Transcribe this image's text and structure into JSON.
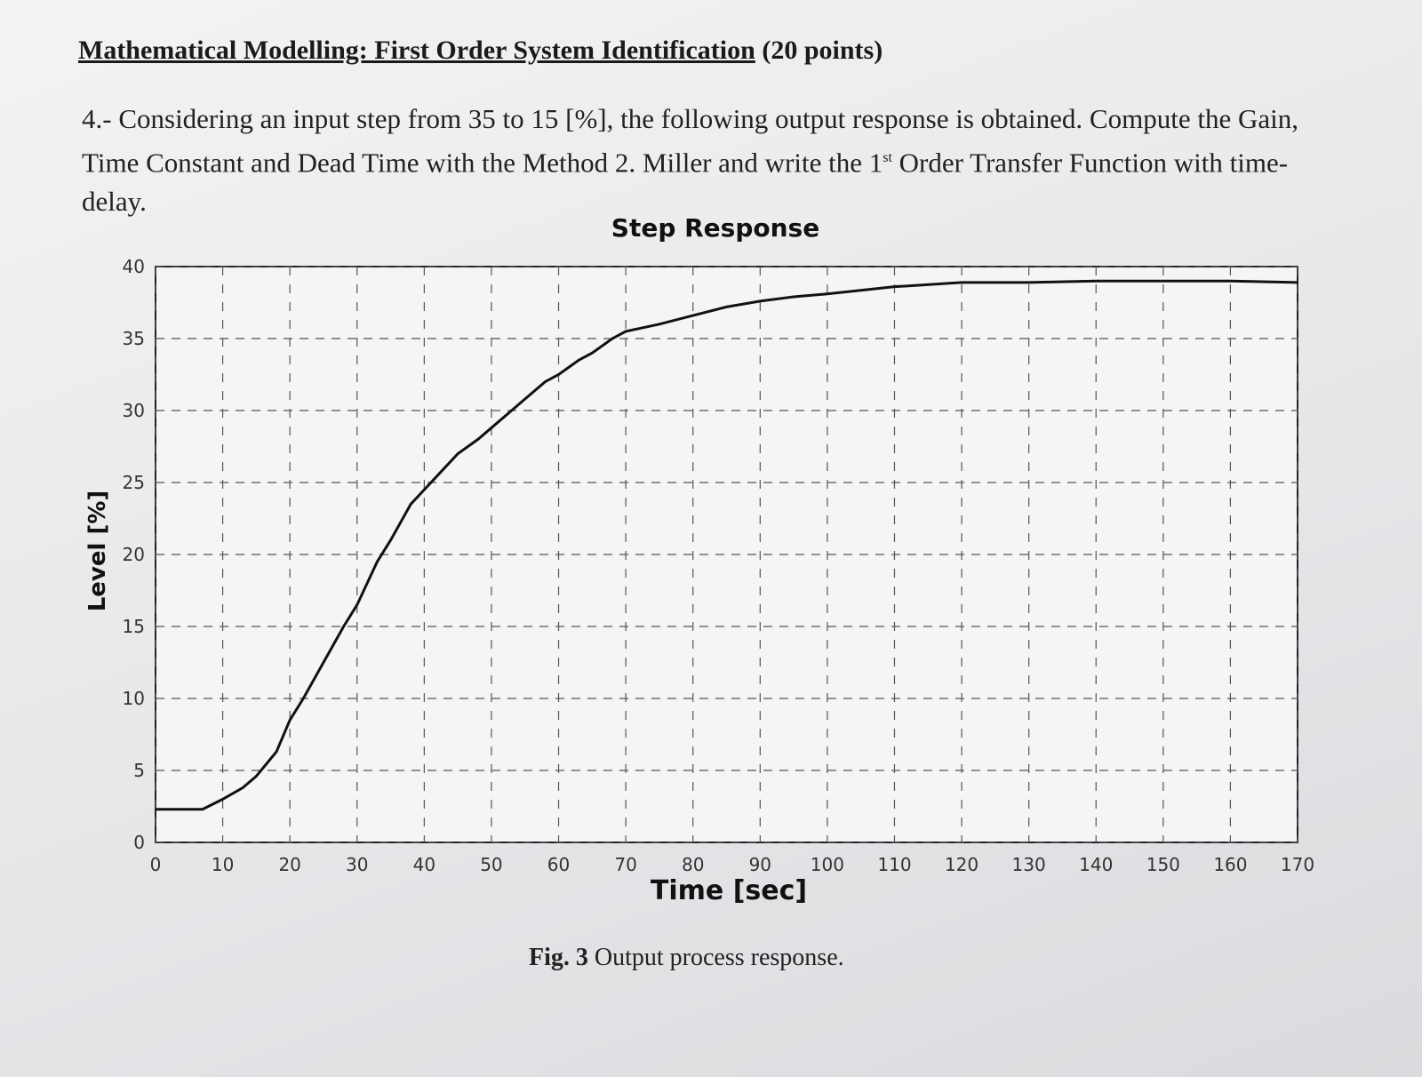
{
  "header": {
    "title": "Mathematical Modelling: First Order System Identification",
    "points": "(20 points)"
  },
  "question": {
    "before": "4.- Considering an input step from 35 to 15 [%], the following output response is obtained. Compute the Gain, Time Constant and Dead Time with the Method 2. Miller and write the 1",
    "superscript": "st",
    "after": "Order Transfer Function with time-delay."
  },
  "chart_data": {
    "type": "line",
    "title": "Step Response",
    "xlabel": "Time [sec]",
    "ylabel": "Level [%]",
    "color": "#111111",
    "grid": true,
    "x": [
      0,
      5,
      7,
      10,
      13,
      15,
      18,
      20,
      22,
      25,
      28,
      30,
      33,
      35,
      38,
      40,
      43,
      45,
      48,
      50,
      53,
      55,
      58,
      60,
      63,
      65,
      68,
      70,
      75,
      80,
      85,
      90,
      95,
      100,
      110,
      120,
      130,
      140,
      150,
      160,
      170
    ],
    "values": [
      2.3,
      2.3,
      2.3,
      3,
      3.8,
      4.6,
      6.3,
      8.5,
      10,
      12.5,
      15,
      16.5,
      19.5,
      21,
      23.5,
      24.5,
      26,
      27,
      28,
      28.8,
      30,
      30.8,
      32,
      32.5,
      33.5,
      34,
      35,
      35.5,
      36,
      36.6,
      37.2,
      37.6,
      37.9,
      38.1,
      38.6,
      38.9,
      38.9,
      39,
      39,
      39,
      38.9
    ],
    "xlim": [
      0,
      170
    ],
    "ylim": [
      0,
      40
    ],
    "xticks": [
      0,
      10,
      20,
      30,
      40,
      50,
      60,
      70,
      80,
      90,
      100,
      110,
      120,
      130,
      140,
      150,
      160,
      170
    ],
    "yticks": [
      0,
      5,
      10,
      15,
      20,
      25,
      30,
      35,
      40
    ]
  },
  "caption": {
    "label": "Fig. 3",
    "text": "Output process response."
  }
}
